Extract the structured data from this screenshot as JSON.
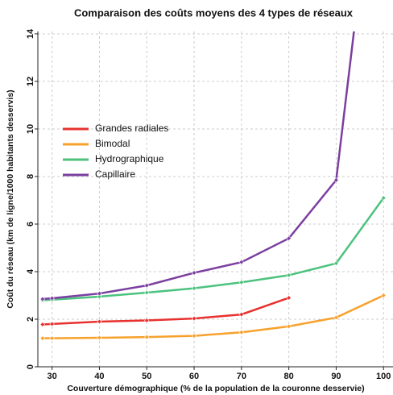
{
  "chart_data": {
    "type": "line",
    "title": "Comparaison des coûts moyens des 4 types de réseaux",
    "x_label": "Couverture démographique (% de la population de la couronne desservie)",
    "y_label": "Coût du réseau (km de ligne/1000 habitants desservis)",
    "xlim": [
      27,
      102
    ],
    "xticks": [
      30,
      40,
      50,
      60,
      70,
      80,
      90,
      100
    ],
    "ylim": [
      0,
      14.1
    ],
    "yticks": [
      0,
      2,
      4,
      6,
      8,
      10,
      12,
      14
    ],
    "grid": true,
    "legend": "upper left",
    "series": [
      {
        "name": "Grandes radiales",
        "color": "#e8312f",
        "x": [
          28,
          30,
          40,
          50,
          60,
          70,
          80
        ],
        "values": [
          1.78,
          1.8,
          1.9,
          1.95,
          2.03,
          2.2,
          2.9
        ]
      },
      {
        "name": "Bimodal",
        "color": "#f7a12c",
        "x": [
          28,
          30,
          40,
          50,
          60,
          70,
          80,
          90,
          100
        ],
        "values": [
          1.2,
          1.2,
          1.22,
          1.25,
          1.3,
          1.45,
          1.7,
          2.07,
          3.0
        ]
      },
      {
        "name": "Hydrographique",
        "color": "#4cc27e",
        "x": [
          28,
          30,
          40,
          50,
          60,
          70,
          80,
          90,
          100
        ],
        "values": [
          2.8,
          2.82,
          2.95,
          3.12,
          3.3,
          3.55,
          3.85,
          4.35,
          7.1
        ]
      },
      {
        "name": "Capillaire",
        "color": "#7b3fa0",
        "x": [
          28,
          30,
          40,
          50,
          60,
          70,
          80,
          90,
          94
        ],
        "values": [
          2.85,
          2.88,
          3.08,
          3.42,
          3.95,
          4.4,
          5.4,
          7.85,
          14.5
        ]
      }
    ]
  }
}
